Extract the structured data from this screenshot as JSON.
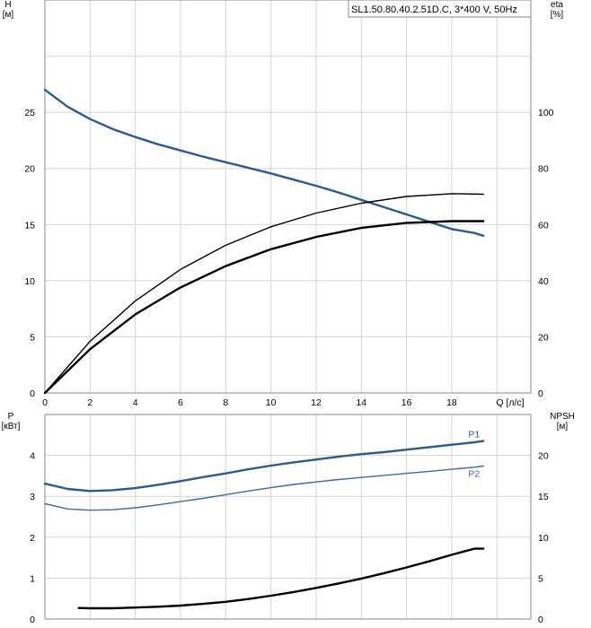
{
  "colors": {
    "blue": "#2a5b94",
    "light_blue": "#3c6aa5",
    "black": "#000000",
    "grid": "#d4d4d4"
  },
  "chart_data": [
    {
      "type": "line",
      "title": "SL1.50.80.40.2.51D.C, 3*400 V, 50Hz",
      "xlabel": "Q [л/с]",
      "ylabel": "H\n[м]",
      "y2label": "eta\n[%]",
      "xlim": [
        0,
        21.5
      ],
      "ylim": [
        0,
        35
      ],
      "y2lim": [
        0,
        140
      ],
      "xticks": [
        0,
        2,
        4,
        6,
        8,
        10,
        12,
        14,
        16,
        18
      ],
      "yticks": [
        0,
        5,
        10,
        15,
        20,
        25
      ],
      "y2ticks": [
        0,
        20,
        40,
        60,
        80,
        100
      ],
      "grid": true,
      "series": [
        {
          "color": "blue",
          "axis": "left",
          "x": [
            0,
            1,
            2,
            3,
            4,
            5,
            6,
            7,
            8,
            9,
            10,
            11,
            12,
            13,
            14,
            15,
            16,
            17,
            18,
            19,
            19.4
          ],
          "y": [
            27.0,
            25.5,
            24.4,
            23.5,
            22.8,
            22.15,
            21.6,
            21.05,
            20.55,
            20.05,
            19.55,
            19.0,
            18.45,
            17.85,
            17.2,
            16.55,
            15.9,
            15.25,
            14.6,
            14.25,
            14.0
          ]
        },
        {
          "color": "black",
          "axis": "right",
          "width": "thin",
          "x": [
            0,
            2,
            4,
            6,
            8,
            10,
            12,
            14,
            16,
            18,
            19.4
          ],
          "y": [
            0,
            18.4,
            32.8,
            44.0,
            52.6,
            59.2,
            64.1,
            67.6,
            70.0,
            71.0,
            70.8
          ]
        },
        {
          "color": "black",
          "axis": "right",
          "width": "thick",
          "x": [
            0,
            2,
            4,
            6,
            8,
            10,
            12,
            14,
            16,
            18,
            19.4
          ],
          "y": [
            0,
            15.6,
            28.0,
            37.6,
            45.2,
            51.2,
            55.6,
            58.8,
            60.6,
            61.2,
            61.2
          ]
        }
      ]
    },
    {
      "type": "line",
      "xlabel": "",
      "ylabel": "P\n[кВт]",
      "y2label": "NPSH\n[м]",
      "xlim": [
        0,
        21.5
      ],
      "ylim": [
        0,
        5
      ],
      "y2lim": [
        0,
        25
      ],
      "yticks": [
        0,
        1,
        2,
        3,
        4
      ],
      "y2ticks": [
        0,
        5,
        10,
        15,
        20
      ],
      "grid": true,
      "series": [
        {
          "name": "P1",
          "color": "blue",
          "axis": "left",
          "width": "thick",
          "x": [
            0,
            1,
            2,
            3,
            4,
            5,
            6,
            7,
            8,
            9,
            10,
            11,
            12,
            13,
            14,
            15,
            16,
            17,
            18,
            19,
            19.4
          ],
          "y": [
            3.31,
            3.18,
            3.13,
            3.15,
            3.2,
            3.28,
            3.37,
            3.47,
            3.56,
            3.66,
            3.75,
            3.83,
            3.9,
            3.97,
            4.03,
            4.08,
            4.14,
            4.2,
            4.26,
            4.32,
            4.35
          ]
        },
        {
          "name": "P2",
          "color": "light_blue",
          "axis": "left",
          "width": "thin",
          "x": [
            0,
            1,
            2,
            3,
            4,
            5,
            6,
            7,
            8,
            9,
            10,
            11,
            12,
            13,
            14,
            15,
            16,
            17,
            18,
            19,
            19.4
          ],
          "y": [
            2.82,
            2.69,
            2.66,
            2.67,
            2.72,
            2.79,
            2.87,
            2.95,
            3.04,
            3.13,
            3.21,
            3.29,
            3.35,
            3.41,
            3.46,
            3.51,
            3.56,
            3.61,
            3.66,
            3.71,
            3.74
          ]
        },
        {
          "color": "black",
          "axis": "right",
          "width": "thick",
          "x": [
            1.5,
            2,
            3,
            4,
            5,
            6,
            7,
            8,
            9,
            10,
            11,
            12,
            13,
            14,
            15,
            16,
            17,
            18,
            19,
            19.4
          ],
          "y": [
            1.35,
            1.32,
            1.32,
            1.4,
            1.5,
            1.65,
            1.85,
            2.1,
            2.45,
            2.85,
            3.3,
            3.8,
            4.35,
            4.95,
            5.6,
            6.3,
            7.05,
            7.85,
            8.6,
            8.6
          ]
        }
      ]
    }
  ]
}
